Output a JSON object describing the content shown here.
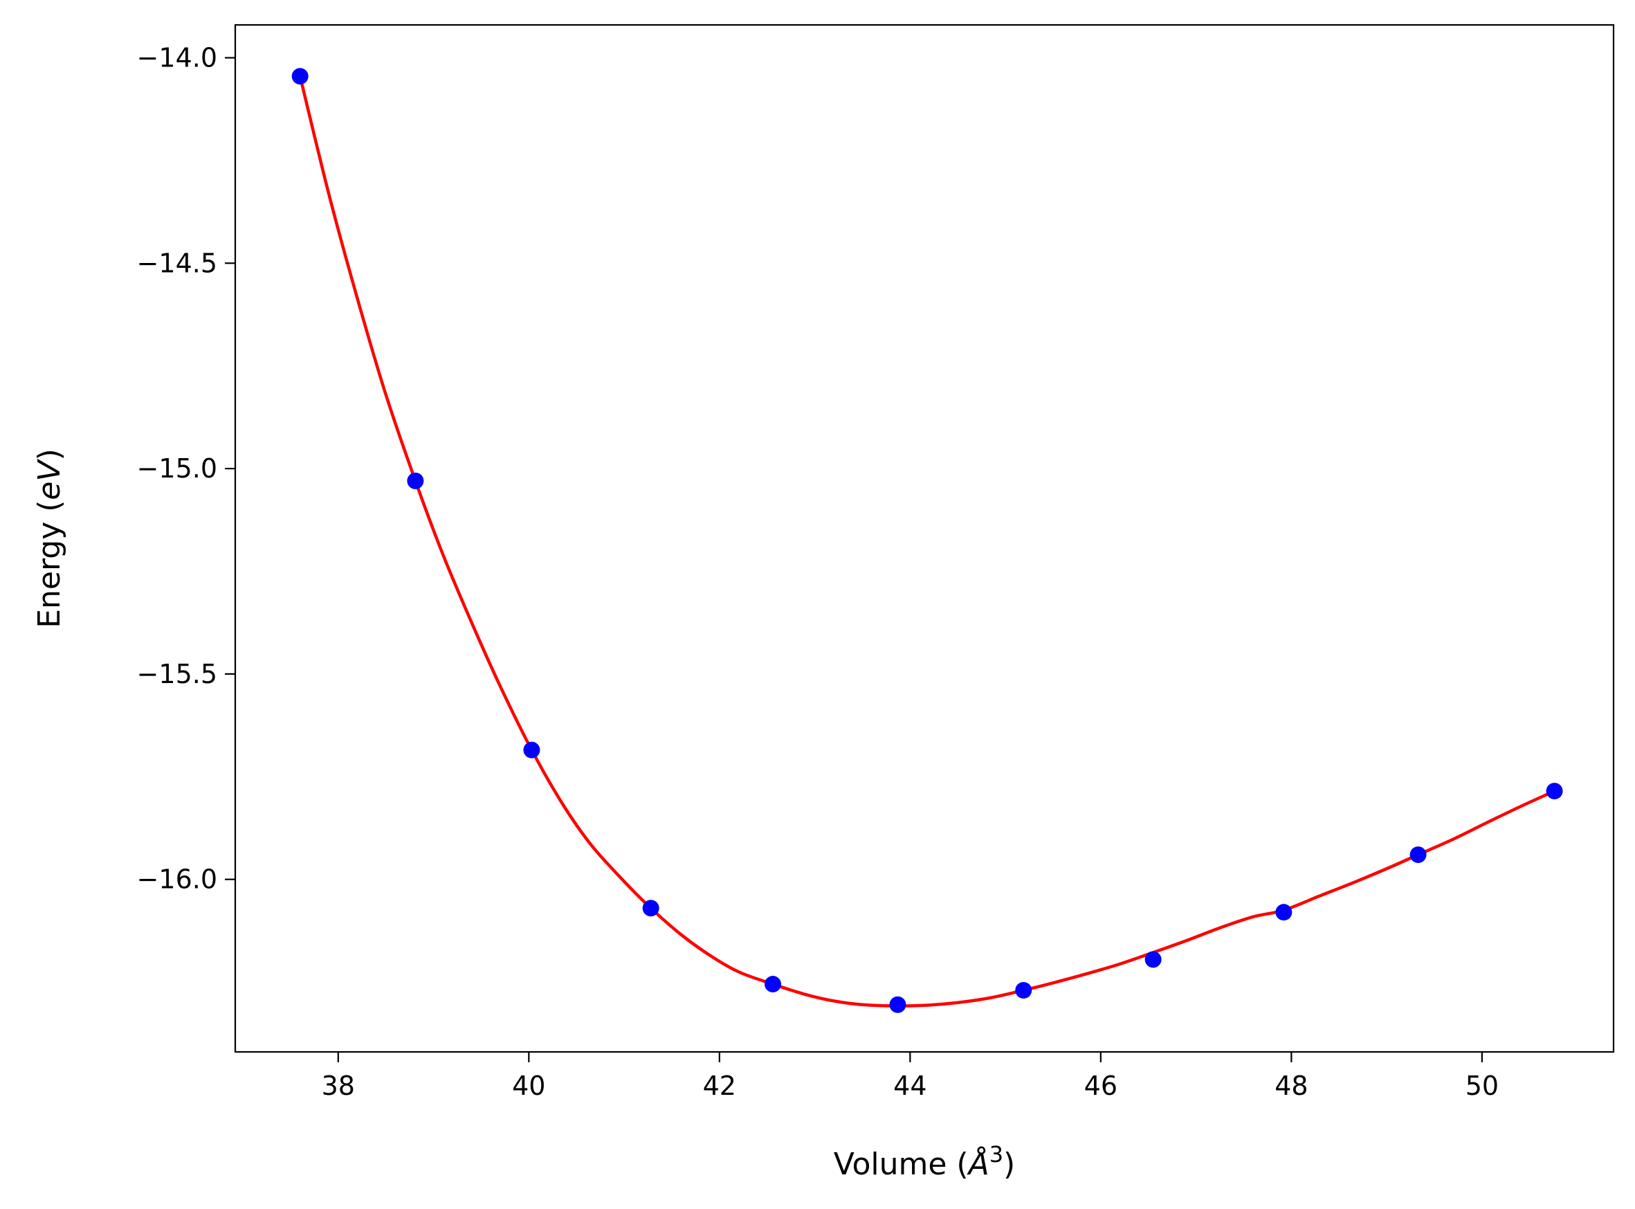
{
  "chart_data": {
    "type": "line",
    "title": "",
    "xlabel": "Volume",
    "xlabel_unit": "Å",
    "xlabel_unit_exponent": "3",
    "ylabel": "Energy",
    "ylabel_unit": "eV",
    "xlim": [
      36.92,
      51.38
    ],
    "ylim": [
      -16.42,
      -13.92
    ],
    "xticks": [
      38,
      40,
      42,
      44,
      46,
      48,
      50
    ],
    "xtick_labels": [
      "38",
      "40",
      "42",
      "44",
      "46",
      "48",
      "50"
    ],
    "yticks": [
      -14.0,
      -14.5,
      -15.0,
      -15.5,
      -16.0
    ],
    "ytick_labels": [
      "−14.0",
      "−14.5",
      "−15.0",
      "−15.5",
      "−16.0"
    ],
    "grid": false,
    "legend": "none",
    "series": [
      {
        "kind": "scatter",
        "color": "#0000ff",
        "x": [
          37.6,
          38.81,
          40.03,
          41.28,
          42.56,
          43.87,
          45.19,
          46.55,
          47.92,
          49.33,
          50.76
        ],
        "y": [
          -14.045,
          -15.03,
          -15.685,
          -16.07,
          -16.255,
          -16.305,
          -16.27,
          -16.195,
          -16.08,
          -15.94,
          -15.785
        ]
      },
      {
        "kind": "line",
        "color": "#ff0000",
        "x": [
          37.6,
          37.9,
          38.2,
          38.5,
          38.81,
          39.1,
          39.4,
          39.7,
          40.03,
          40.35,
          40.65,
          41.0,
          41.28,
          41.6,
          41.9,
          42.2,
          42.56,
          42.9,
          43.2,
          43.5,
          43.87,
          44.2,
          44.5,
          44.85,
          45.19,
          45.5,
          45.85,
          46.2,
          46.55,
          46.9,
          47.25,
          47.6,
          47.92,
          48.3,
          48.65,
          49.0,
          49.33,
          49.7,
          50.05,
          50.4,
          50.76
        ],
        "y": [
          -14.045,
          -14.33,
          -14.585,
          -14.82,
          -15.03,
          -15.21,
          -15.375,
          -15.53,
          -15.685,
          -15.815,
          -15.915,
          -16.005,
          -16.07,
          -16.135,
          -16.185,
          -16.225,
          -16.255,
          -16.28,
          -16.296,
          -16.305,
          -16.308,
          -16.306,
          -16.3,
          -16.288,
          -16.27,
          -16.252,
          -16.23,
          -16.206,
          -16.178,
          -16.149,
          -16.118,
          -16.091,
          -16.075,
          -16.04,
          -16.008,
          -15.974,
          -15.94,
          -15.902,
          -15.862,
          -15.823,
          -15.785
        ]
      }
    ]
  }
}
